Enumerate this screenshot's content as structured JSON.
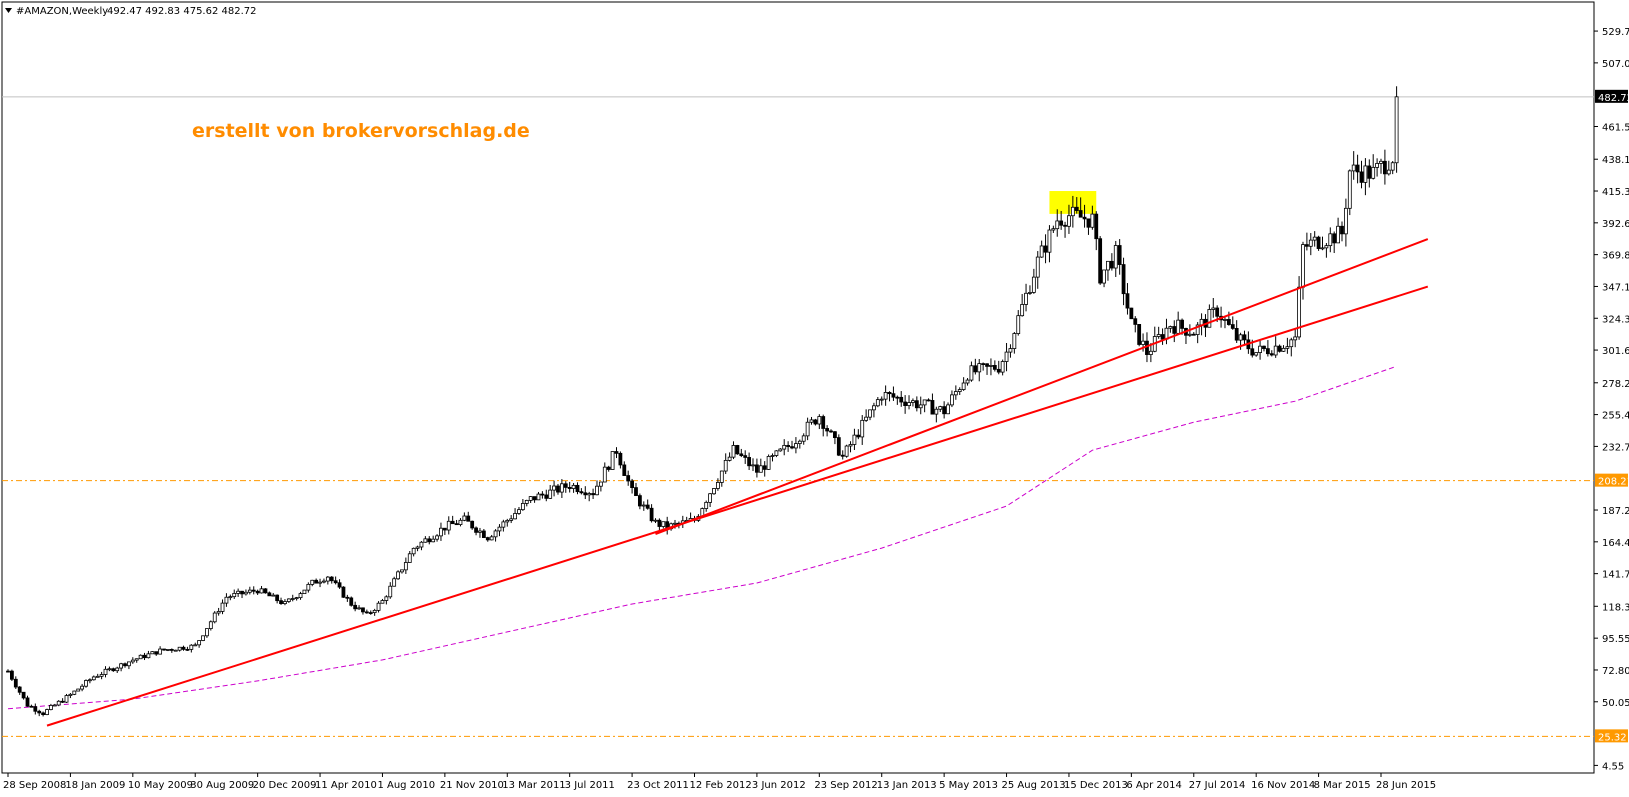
{
  "header": {
    "symbol": "#AMAZON,Weekly",
    "ohlc": "492.47 492.83 475.62 482.72"
  },
  "watermark": "erstellt von brokervorschlag.de",
  "colors": {
    "background": "#ffffff",
    "bull_body": "#ffffff",
    "bear_body": "#000000",
    "trendline": "#ff0000",
    "moving_average": "#cc00cc",
    "level_line": "#ff9900",
    "highlight": "#ffff00"
  },
  "chart_data": {
    "type": "candlestick",
    "title": "#AMAZON,Weekly",
    "ylim": [
      4.55,
      541.1
    ],
    "y_ticks": [
      "529.75",
      "507.00",
      "461.50",
      "438.10",
      "415.35",
      "392.60",
      "369.85",
      "347.10",
      "324.35",
      "301.60",
      "278.20",
      "255.45",
      "232.70",
      "187.20",
      "164.45",
      "141.70",
      "118.35",
      "95.55",
      "72.80",
      "50.05",
      "4.55"
    ],
    "x_ticks": [
      "28 Sep 2008",
      "18 Jan 2009",
      "10 May 2009",
      "30 Aug 2009",
      "20 Dec 2009",
      "11 Apr 2010",
      "1 Aug 2010",
      "21 Nov 2010",
      "13 Mar 2011",
      "3 Jul 2011",
      "23 Oct 2011",
      "12 Feb 2012",
      "3 Jun 2012",
      "23 Sep 2012",
      "13 Jan 2013",
      "5 May 2013",
      "25 Aug 2013",
      "15 Dec 2013",
      "6 Apr 2014",
      "27 Jul 2014",
      "16 Nov 2014",
      "8 Mar 2015",
      "28 Jun 2015"
    ],
    "last_price": {
      "label": "482.72",
      "value": 482.72
    },
    "price_levels": [
      {
        "label": "208.21",
        "value": 208.21
      },
      {
        "label": "25.32",
        "value": 25.32
      }
    ],
    "series_close_path": [
      {
        "date": "2008-09-28",
        "value": 72
      },
      {
        "date": "2008-11-01",
        "value": 48
      },
      {
        "date": "2008-11-30",
        "value": 42
      },
      {
        "date": "2009-01-18",
        "value": 55
      },
      {
        "date": "2009-03-01",
        "value": 68
      },
      {
        "date": "2009-05-10",
        "value": 80
      },
      {
        "date": "2009-07-01",
        "value": 87
      },
      {
        "date": "2009-08-30",
        "value": 90
      },
      {
        "date": "2009-10-25",
        "value": 125
      },
      {
        "date": "2009-12-20",
        "value": 130
      },
      {
        "date": "2010-02-07",
        "value": 120
      },
      {
        "date": "2010-03-28",
        "value": 135
      },
      {
        "date": "2010-04-25",
        "value": 140
      },
      {
        "date": "2010-06-06",
        "value": 120
      },
      {
        "date": "2010-07-04",
        "value": 112
      },
      {
        "date": "2010-08-01",
        "value": 122
      },
      {
        "date": "2010-09-26",
        "value": 160
      },
      {
        "date": "2010-11-21",
        "value": 175
      },
      {
        "date": "2010-12-26",
        "value": 180
      },
      {
        "date": "2011-02-06",
        "value": 168
      },
      {
        "date": "2011-03-13",
        "value": 180
      },
      {
        "date": "2011-04-24",
        "value": 195
      },
      {
        "date": "2011-07-03",
        "value": 205
      },
      {
        "date": "2011-08-14",
        "value": 200
      },
      {
        "date": "2011-09-25",
        "value": 230
      },
      {
        "date": "2011-10-23",
        "value": 200
      },
      {
        "date": "2011-12-04",
        "value": 178
      },
      {
        "date": "2011-12-25",
        "value": 175
      },
      {
        "date": "2012-02-12",
        "value": 180
      },
      {
        "date": "2012-04-22",
        "value": 230
      },
      {
        "date": "2012-06-03",
        "value": 215
      },
      {
        "date": "2012-08-05",
        "value": 235
      },
      {
        "date": "2012-09-23",
        "value": 255
      },
      {
        "date": "2012-11-04",
        "value": 225
      },
      {
        "date": "2012-12-16",
        "value": 252
      },
      {
        "date": "2013-01-13",
        "value": 270
      },
      {
        "date": "2013-03-03",
        "value": 265
      },
      {
        "date": "2013-05-05",
        "value": 258
      },
      {
        "date": "2013-06-16",
        "value": 285
      },
      {
        "date": "2013-08-11",
        "value": 290
      },
      {
        "date": "2013-08-25",
        "value": 300
      },
      {
        "date": "2013-10-20",
        "value": 365
      },
      {
        "date": "2013-11-24",
        "value": 395
      },
      {
        "date": "2013-12-15",
        "value": 398
      },
      {
        "date": "2014-01-26",
        "value": 395
      },
      {
        "date": "2014-02-09",
        "value": 355
      },
      {
        "date": "2014-03-09",
        "value": 370
      },
      {
        "date": "2014-04-06",
        "value": 320
      },
      {
        "date": "2014-05-04",
        "value": 300
      },
      {
        "date": "2014-06-15",
        "value": 320
      },
      {
        "date": "2014-07-27",
        "value": 315
      },
      {
        "date": "2014-09-07",
        "value": 330
      },
      {
        "date": "2014-10-12",
        "value": 310
      },
      {
        "date": "2014-11-16",
        "value": 300
      },
      {
        "date": "2014-12-28",
        "value": 305
      },
      {
        "date": "2015-01-25",
        "value": 310
      },
      {
        "date": "2015-02-08",
        "value": 375
      },
      {
        "date": "2015-03-08",
        "value": 380
      },
      {
        "date": "2015-04-19",
        "value": 385
      },
      {
        "date": "2015-05-03",
        "value": 430
      },
      {
        "date": "2015-06-14",
        "value": 428
      },
      {
        "date": "2015-07-19",
        "value": 440
      },
      {
        "date": "2015-07-26",
        "value": 482.72
      }
    ],
    "moving_average": [
      {
        "date": "2008-09-28",
        "value": 45
      },
      {
        "date": "2009-05-10",
        "value": 52
      },
      {
        "date": "2009-12-20",
        "value": 65
      },
      {
        "date": "2010-08-01",
        "value": 80
      },
      {
        "date": "2011-03-13",
        "value": 100
      },
      {
        "date": "2011-10-23",
        "value": 120
      },
      {
        "date": "2012-06-03",
        "value": 135
      },
      {
        "date": "2013-01-13",
        "value": 160
      },
      {
        "date": "2013-08-25",
        "value": 190
      },
      {
        "date": "2014-01-26",
        "value": 230
      },
      {
        "date": "2014-07-27",
        "value": 250
      },
      {
        "date": "2015-01-25",
        "value": 265
      },
      {
        "date": "2015-07-26",
        "value": 290
      }
    ],
    "trendlines": [
      {
        "points": [
          {
            "date": "2008-12-07",
            "value": 33
          },
          {
            "date": "2015-09-20",
            "value": 347
          }
        ]
      },
      {
        "points": [
          {
            "date": "2011-12-04",
            "value": 170
          },
          {
            "date": "2015-09-20",
            "value": 381
          }
        ]
      }
    ],
    "highlight_zone": {
      "date_from": "2013-11-10",
      "date_to": "2014-02-02",
      "value_from": 399,
      "value_to": 415.35
    },
    "grid": false,
    "legend": "none"
  }
}
